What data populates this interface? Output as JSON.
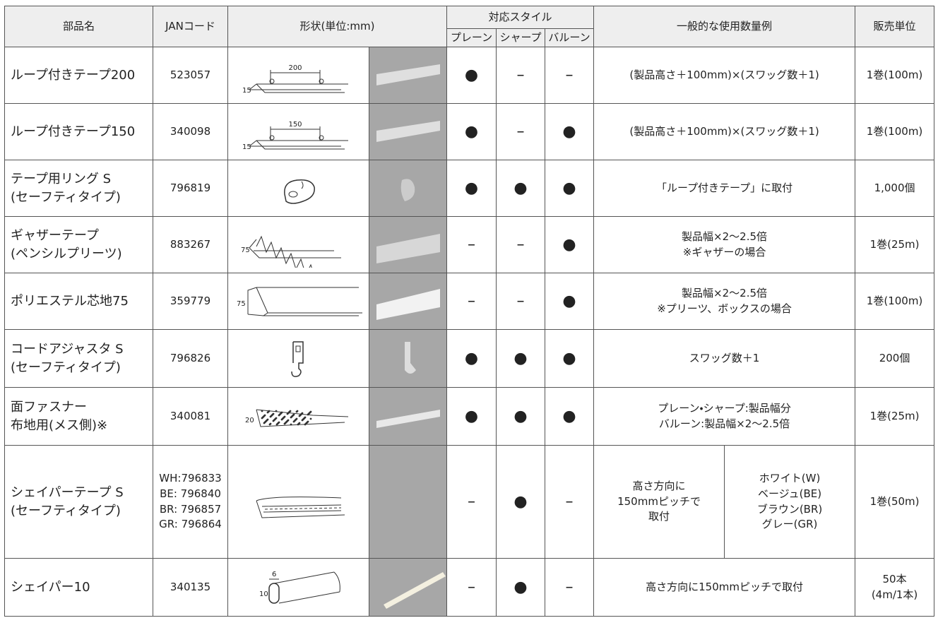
{
  "header": {
    "name": "部品名",
    "jan": "JANコード",
    "shape": "形状(単位:mm)",
    "styles": "対応スタイル",
    "style_names": [
      "プレーン",
      "シャープ",
      "バルーン"
    ],
    "usage": "一般的な使用数量例",
    "unit": "販売単位"
  },
  "rows": [
    {
      "name": "ループ付きテープ200",
      "jan": "523057",
      "dims": [
        "200",
        "15"
      ],
      "styles": [
        "●",
        "–",
        "–"
      ],
      "usage": [
        "(製品高さ＋100mm)×(スワッグ数＋1)"
      ],
      "unit": "1巻(100m)"
    },
    {
      "name": "ループ付きテープ150",
      "jan": "340098",
      "dims": [
        "150",
        "15"
      ],
      "styles": [
        "●",
        "–",
        "●"
      ],
      "usage": [
        "(製品高さ＋100mm)×(スワッグ数＋1)"
      ],
      "unit": "1巻(100m)"
    },
    {
      "name": "テープ用リング S\n(セーフティタイプ)",
      "jan": "796819",
      "dims": [],
      "styles": [
        "●",
        "●",
        "●"
      ],
      "usage": [
        "「ループ付きテープ」に取付"
      ],
      "unit": "1,000個"
    },
    {
      "name": "ギャザーテープ\n(ペンシルプリーツ)",
      "jan": "883267",
      "dims": [
        "75"
      ],
      "styles": [
        "–",
        "–",
        "●"
      ],
      "usage": [
        "製品幅×2〜2.5倍\n※ギャザーの場合"
      ],
      "unit": "1巻(25m)"
    },
    {
      "name": "ポリエステル芯地75",
      "jan": "359779",
      "dims": [
        "75"
      ],
      "styles": [
        "–",
        "–",
        "●"
      ],
      "usage": [
        "製品幅×2〜2.5倍\n※プリーツ、ボックスの場合"
      ],
      "unit": "1巻(100m)"
    },
    {
      "name": "コードアジャスタ S\n(セーフティタイプ)",
      "jan": "796826",
      "dims": [],
      "styles": [
        "●",
        "●",
        "●"
      ],
      "usage": [
        "スワッグ数＋1"
      ],
      "unit": "200個"
    },
    {
      "name": "面ファスナー\n布地用(メス側)※",
      "jan": "340081",
      "dims": [
        "20"
      ],
      "styles": [
        "●",
        "●",
        "●"
      ],
      "usage": [
        "プレーン・シャープ:製品幅分\nバルーン:製品幅×2〜2.5倍"
      ],
      "unit": "1巻(25m)"
    },
    {
      "name": "シェイパーテープ S\n(セーフティタイプ)",
      "jan": "WH:796833\nBE: 796840\nBR: 796857\nGR: 796864",
      "dims": [],
      "styles": [
        "–",
        "●",
        "–"
      ],
      "usage": [
        "高さ方向に\n150mmピッチで\n取付",
        "ホワイト(W)\nベージュ(BE)\nブラウン(BR)\nグレー(GR)"
      ],
      "unit": "1巻(50m)"
    },
    {
      "name": "シェイパー10",
      "jan": "340135",
      "dims": [
        "6",
        "10"
      ],
      "styles": [
        "–",
        "●",
        "–"
      ],
      "usage": [
        "高さ方向に150mmピッチで取付"
      ],
      "unit": "50本\n(4m/1本)"
    }
  ]
}
